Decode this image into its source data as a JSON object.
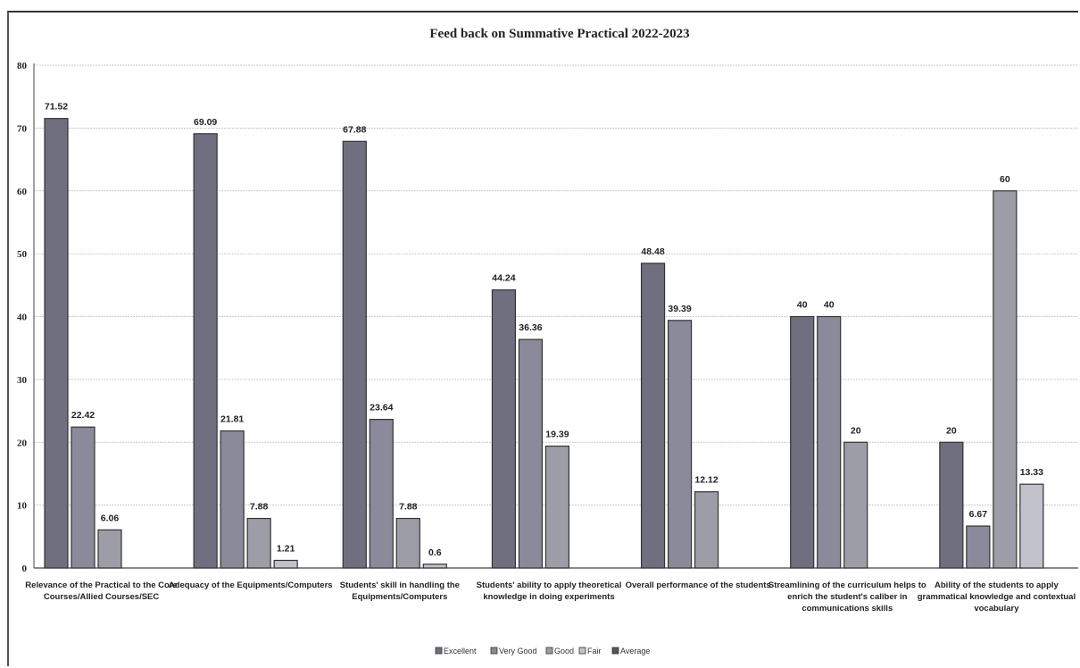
{
  "chart_data": {
    "type": "bar",
    "title": "Feed back on Summative Practical 2022-2023",
    "ylim": [
      0,
      80
    ],
    "yticks": [
      0,
      10,
      20,
      30,
      40,
      50,
      60,
      70,
      80
    ],
    "grid": true,
    "legend_position": "bottom",
    "categories": [
      [
        "Relevance of the Practical to the Core",
        "Courses/Allied Courses/SEC"
      ],
      [
        "Adequacy of the Equipments/Computers"
      ],
      [
        "Students' skill in handling the",
        "Equipments/Computers"
      ],
      [
        "Students' ability to apply theoretical",
        "knowledge in doing experiments"
      ],
      [
        "Overall performance of the students"
      ],
      [
        "Streamlining of the curriculum helps to",
        "enrich the student's caliber in",
        "communications skills"
      ],
      [
        "Ability of the students to apply",
        "grammatical knowledge and contextual",
        "vocabulary"
      ]
    ],
    "series": [
      {
        "name": "Excellent",
        "values": [
          71.52,
          69.09,
          67.88,
          44.24,
          48.48,
          40,
          20
        ]
      },
      {
        "name": "Very Good",
        "values": [
          22.42,
          21.81,
          23.64,
          36.36,
          39.39,
          40,
          6.67
        ]
      },
      {
        "name": "Good",
        "values": [
          6.06,
          7.88,
          7.88,
          19.39,
          12.12,
          20,
          60
        ]
      },
      {
        "name": "Fair",
        "values": [
          null,
          1.21,
          0.6,
          null,
          null,
          null,
          13.33
        ]
      },
      {
        "name": "Average",
        "values": [
          null,
          null,
          null,
          null,
          null,
          null,
          null
        ]
      }
    ],
    "colors": [
      "#6f6f80",
      "#8a8a9a",
      "#9d9da8",
      "#c2c2cc",
      "#55555f"
    ]
  }
}
